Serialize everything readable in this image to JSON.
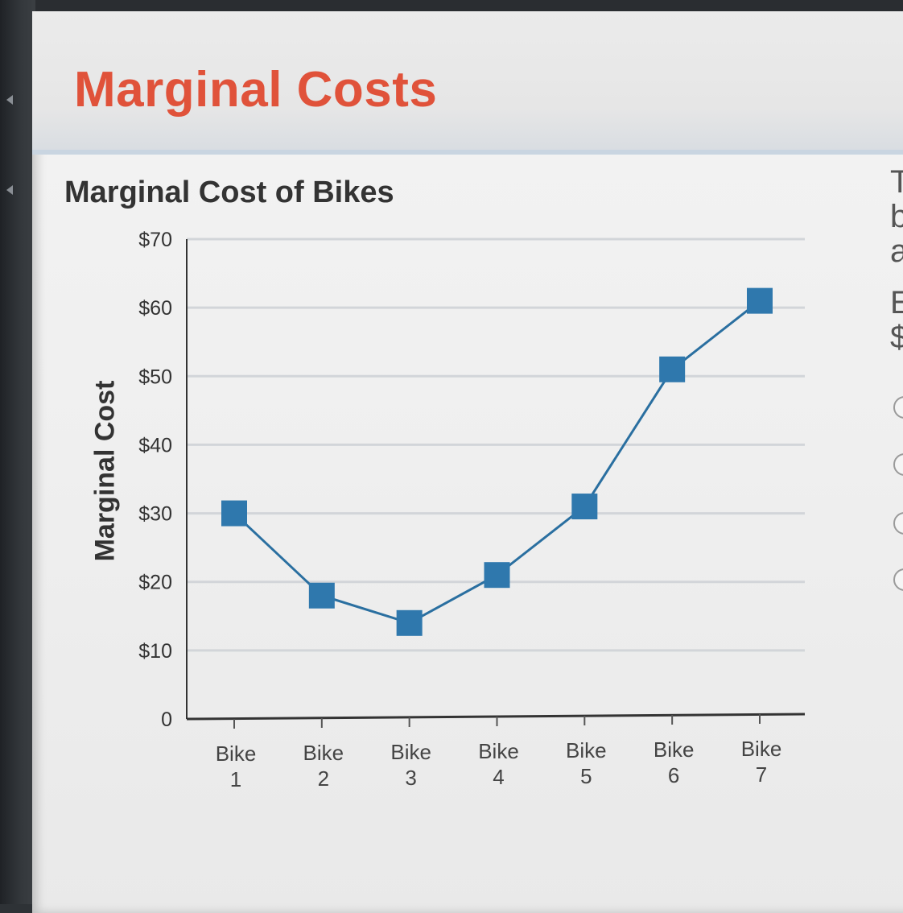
{
  "page": {
    "title": "Marginal Costs"
  },
  "right_panel": {
    "glyphs": [
      "T",
      "b",
      "a",
      "E",
      "$"
    ],
    "radio_count": 4
  },
  "colors": {
    "title": "#e0523a",
    "series": "#2a6fa0",
    "marker": "#2f78ad"
  },
  "chart_data": {
    "type": "line",
    "title": "Marginal Cost of Bikes",
    "xlabel": "",
    "ylabel": "Marginal Cost",
    "categories": [
      [
        "Bike",
        "1"
      ],
      [
        "Bike",
        "2"
      ],
      [
        "Bike",
        "3"
      ],
      [
        "Bike",
        "4"
      ],
      [
        "Bike",
        "5"
      ],
      [
        "Bike",
        "6"
      ],
      [
        "Bike",
        "7"
      ]
    ],
    "values": [
      30,
      18,
      14,
      21,
      31,
      51,
      61
    ],
    "ylim": [
      0,
      70
    ],
    "yticks": [
      0,
      10,
      20,
      30,
      40,
      50,
      60,
      70
    ],
    "ytick_labels": [
      "0",
      "$10",
      "$20",
      "$30",
      "$40",
      "$50",
      "$60",
      "$70"
    ],
    "grid": true,
    "marker": "square",
    "legend": "none"
  }
}
